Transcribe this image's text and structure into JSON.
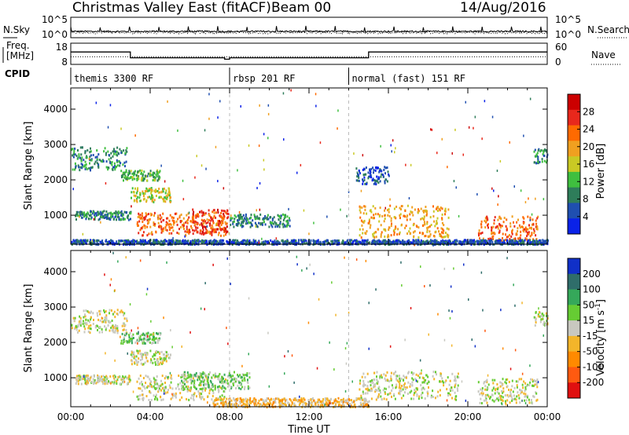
{
  "header": {
    "station": "Christmas Valley East (fitACF)",
    "beam": "Beam 00",
    "date": "14/Aug/2016"
  },
  "colors": {
    "power_scale": [
      "#0a22e8",
      "#1f4fb0",
      "#2e7d5a",
      "#3fbf3f",
      "#c9c924",
      "#f0a020",
      "#ff6a00",
      "#e8281c",
      "#cc0000"
    ],
    "velocity_scale": [
      "#1030c8",
      "#2f6d6a",
      "#35a85a",
      "#66cc33",
      "#c8c8c0",
      "#f3b52a",
      "#ff8a00",
      "#ff5a10",
      "#e01010"
    ]
  },
  "chart_data": [
    {
      "type": "line",
      "panel": "noise",
      "left_label": "N.Sky",
      "right_label": "N.Search",
      "yticks_left": [
        "10^5",
        "10^0"
      ],
      "yticks_right": [
        "10^5",
        "10^0"
      ],
      "series": [
        {
          "name": "N.Sky",
          "style": "solid"
        },
        {
          "name": "N.Search",
          "style": "dotted"
        }
      ]
    },
    {
      "type": "line",
      "panel": "frequency",
      "left_label": "Freq. [MHz]",
      "right_label": "Nave",
      "yticks_left": [
        "18",
        "8"
      ],
      "yticks_right": [
        "60",
        "0"
      ],
      "x": [
        "00:00",
        "03:00",
        "03:00",
        "07:45",
        "07:45",
        "08:00",
        "08:00",
        "15:00",
        "15:00",
        "24:00"
      ],
      "series": [
        {
          "name": "Freq.",
          "style": "solid",
          "values": [
            14,
            14,
            10.8,
            10.8,
            10,
            10,
            10.8,
            10.8,
            14,
            14
          ]
        },
        {
          "name": "Nave",
          "style": "dotted",
          "values": [
            20,
            20,
            20,
            20,
            20,
            20,
            20,
            20,
            20,
            20
          ]
        }
      ]
    },
    {
      "type": "table",
      "panel": "cpid",
      "label": "CPID",
      "segments": [
        {
          "start": "00:00",
          "end": "08:00",
          "text": "themis 3300 RF"
        },
        {
          "start": "08:00",
          "end": "14:00",
          "text": "rbsp 201 RF"
        },
        {
          "start": "14:00",
          "end": "24:00",
          "text": "normal (fast) 151 RF"
        }
      ]
    },
    {
      "type": "heatmap",
      "panel": "power",
      "ylabel": "Slant Range [km]",
      "ylim": [
        180,
        4600
      ],
      "yticks": [
        "1000",
        "2000",
        "3000",
        "4000"
      ],
      "xlim": [
        0,
        24
      ],
      "colorbar_label": "Power [dB]",
      "colorbar_ticks": [
        "4",
        "8",
        "12",
        "16",
        "20",
        "24",
        "28"
      ],
      "blobs": [
        {
          "t": [
            0.0,
            2.8
          ],
          "r": [
            2300,
            2950
          ],
          "level": 2
        },
        {
          "t": [
            0.2,
            3.0
          ],
          "r": [
            900,
            1150
          ],
          "level": 2
        },
        {
          "t": [
            3.0,
            5.0
          ],
          "r": [
            1400,
            1800
          ],
          "level": 4
        },
        {
          "t": [
            3.3,
            7.8
          ],
          "r": [
            450,
            1100
          ],
          "level": 6
        },
        {
          "t": [
            6.0,
            7.9
          ],
          "r": [
            500,
            1200
          ],
          "level": 7
        },
        {
          "t": [
            2.5,
            4.5
          ],
          "r": [
            2000,
            2300
          ],
          "level": 3
        },
        {
          "t": [
            8.0,
            11.0
          ],
          "r": [
            700,
            1050
          ],
          "level": 2
        },
        {
          "t": [
            14.3,
            16.0
          ],
          "r": [
            1900,
            2400
          ],
          "level": 1
        },
        {
          "t": [
            14.5,
            19.0
          ],
          "r": [
            400,
            1300
          ],
          "level": 5
        },
        {
          "t": [
            20.5,
            23.5
          ],
          "r": [
            300,
            1000
          ],
          "level": 6
        },
        {
          "t": [
            23.3,
            24.0
          ],
          "r": [
            2500,
            2900
          ],
          "level": 2
        },
        {
          "t": [
            0.0,
            24.0
          ],
          "r": [
            200,
            330
          ],
          "level": 1
        }
      ]
    },
    {
      "type": "heatmap",
      "panel": "velocity",
      "ylabel": "Slant Range [km]",
      "ylim": [
        180,
        4600
      ],
      "yticks": [
        "1000",
        "2000",
        "3000",
        "4000"
      ],
      "xlabel": "Time UT",
      "xticks": [
        "00:00",
        "04:00",
        "08:00",
        "12:00",
        "16:00",
        "20:00",
        "00:00"
      ],
      "xlim": [
        0,
        24
      ],
      "colorbar_label": "Velocity [m s^-1]",
      "colorbar_ticks": [
        "200",
        "100",
        "50",
        "15",
        "-15",
        "-50",
        "-100",
        "-200"
      ],
      "blobs": [
        {
          "t": [
            0.0,
            2.8
          ],
          "r": [
            2300,
            2950
          ],
          "level": 4
        },
        {
          "t": [
            0.2,
            3.0
          ],
          "r": [
            850,
            1100
          ],
          "level": 4
        },
        {
          "t": [
            3.0,
            5.0
          ],
          "r": [
            1400,
            1800
          ],
          "level": 4
        },
        {
          "t": [
            3.3,
            7.8
          ],
          "r": [
            400,
            1100
          ],
          "level": 4
        },
        {
          "t": [
            5.5,
            9.0
          ],
          "r": [
            700,
            1200
          ],
          "level": 3
        },
        {
          "t": [
            2.5,
            4.5
          ],
          "r": [
            2000,
            2300
          ],
          "level": 3
        },
        {
          "t": [
            7.0,
            15.0
          ],
          "r": [
            200,
            450
          ],
          "level": 5
        },
        {
          "t": [
            14.5,
            19.5
          ],
          "r": [
            400,
            1200
          ],
          "level": 4
        },
        {
          "t": [
            20.5,
            23.5
          ],
          "r": [
            300,
            1000
          ],
          "level": 4
        },
        {
          "t": [
            23.3,
            24.0
          ],
          "r": [
            2500,
            2900
          ],
          "level": 4
        }
      ]
    }
  ]
}
